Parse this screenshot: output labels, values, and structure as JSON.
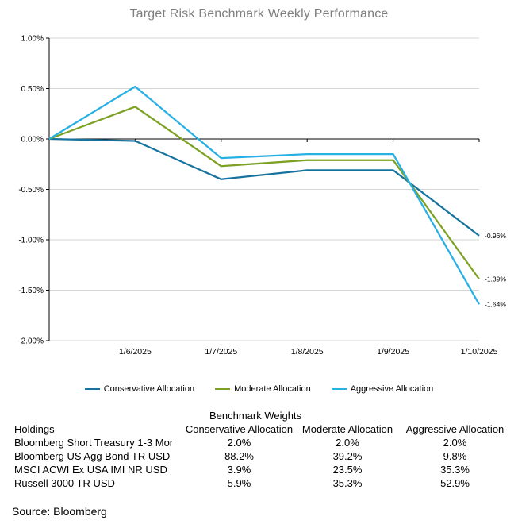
{
  "title": "Target Risk Benchmark Weekly Performance",
  "chart_data": {
    "type": "line",
    "x": [
      "",
      "1/6/2025",
      "1/7/2025",
      "1/8/2025",
      "1/9/2025",
      "1/10/2025"
    ],
    "series": [
      {
        "name": "Conservative Allocation",
        "color": "#16739E",
        "values": [
          0.0,
          -0.02,
          -0.4,
          -0.31,
          -0.31,
          -0.96
        ],
        "end_label": "-0.96%"
      },
      {
        "name": "Moderate Allocation",
        "color": "#7CA123",
        "values": [
          0.0,
          0.32,
          -0.27,
          -0.21,
          -0.21,
          -1.39
        ],
        "end_label": "-1.39%"
      },
      {
        "name": "Aggressive Allocation",
        "color": "#27B0E4",
        "values": [
          0.0,
          0.52,
          -0.19,
          -0.15,
          -0.15,
          -1.64
        ],
        "end_label": "-1.64%"
      }
    ],
    "ylim": [
      -2.0,
      1.0
    ],
    "ytick_step": 0.5,
    "ytick_labels": [
      "1.00%",
      "0.50%",
      "0.00%",
      "-0.50%",
      "-1.00%",
      "-1.50%",
      "-2.00%"
    ],
    "xlabel": "",
    "ylabel": "",
    "grid": true,
    "legend_position": "bottom"
  },
  "table": {
    "title": "Benchmark Weights",
    "columns": [
      "Holdings",
      "Conservative Allocation",
      "Moderate Allocation",
      "Aggressive Allocation"
    ],
    "rows": [
      [
        "Bloomberg Short Treasury 1-3 Mor",
        "2.0%",
        "2.0%",
        "2.0%"
      ],
      [
        "Bloomberg US Agg Bond TR USD",
        "88.2%",
        "39.2%",
        "9.8%"
      ],
      [
        "MSCI ACWI Ex USA IMI NR USD",
        "3.9%",
        "23.5%",
        "35.3%"
      ],
      [
        "Russell 3000 TR USD",
        "5.9%",
        "35.3%",
        "52.9%"
      ]
    ]
  },
  "source": "Source: Bloomberg",
  "colors": {
    "title_gray": "#7f7f7f",
    "gridline": "#d6d6d6",
    "axis": "#000000",
    "conservative": "#16739E",
    "moderate": "#7CA123",
    "aggressive": "#27B0E4"
  }
}
